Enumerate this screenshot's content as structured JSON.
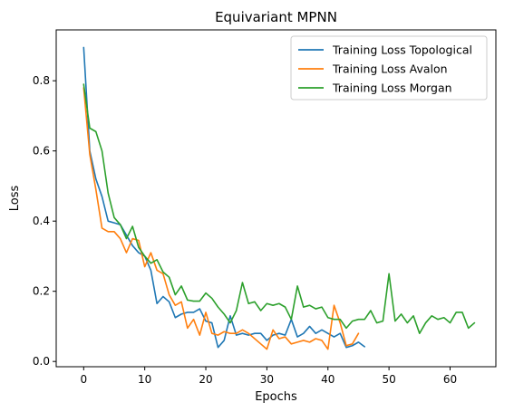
{
  "chart_data": {
    "type": "line",
    "title": "Equivariant MPNN",
    "xlabel": "Epochs",
    "ylabel": "Loss",
    "xlim": [
      -4.5,
      67.5
    ],
    "ylim": [
      -0.015,
      0.945
    ],
    "xticks": [
      0,
      10,
      20,
      30,
      40,
      50,
      60
    ],
    "yticks": [
      0.0,
      0.2,
      0.4,
      0.6,
      0.8
    ],
    "legend_position": "top-right",
    "grid": false,
    "series": [
      {
        "name": "Training Loss Topological",
        "color": "#1f77b4",
        "x": [
          0,
          1,
          2,
          3,
          4,
          5,
          6,
          7,
          8,
          9,
          10,
          11,
          12,
          13,
          14,
          15,
          16,
          17,
          18,
          19,
          20,
          21,
          22,
          23,
          24,
          25,
          26,
          27,
          28,
          29,
          30,
          31,
          32,
          33,
          34,
          35,
          36,
          37,
          38,
          39,
          40,
          41,
          42,
          43,
          44,
          45,
          46
        ],
        "values": [
          0.895,
          0.6,
          0.52,
          0.47,
          0.4,
          0.395,
          0.39,
          0.36,
          0.33,
          0.31,
          0.3,
          0.26,
          0.165,
          0.185,
          0.17,
          0.125,
          0.135,
          0.14,
          0.14,
          0.15,
          0.115,
          0.11,
          0.04,
          0.06,
          0.13,
          0.075,
          0.08,
          0.075,
          0.08,
          0.08,
          0.06,
          0.075,
          0.08,
          0.075,
          0.12,
          0.07,
          0.08,
          0.1,
          0.08,
          0.09,
          0.08,
          0.07,
          0.08,
          0.04,
          0.045,
          0.055,
          0.042
        ]
      },
      {
        "name": "Training Loss Avalon",
        "color": "#ff7f0e",
        "x": [
          0,
          1,
          2,
          3,
          4,
          5,
          6,
          7,
          8,
          9,
          10,
          11,
          12,
          13,
          14,
          15,
          16,
          17,
          18,
          19,
          20,
          21,
          22,
          23,
          24,
          25,
          26,
          27,
          28,
          29,
          30,
          31,
          32,
          33,
          34,
          35,
          36,
          37,
          38,
          39,
          40,
          41,
          42,
          43,
          44,
          45
        ],
        "values": [
          0.78,
          0.59,
          0.49,
          0.38,
          0.37,
          0.37,
          0.35,
          0.31,
          0.35,
          0.345,
          0.27,
          0.31,
          0.26,
          0.25,
          0.19,
          0.16,
          0.17,
          0.095,
          0.12,
          0.075,
          0.14,
          0.08,
          0.075,
          0.085,
          0.08,
          0.08,
          0.09,
          0.08,
          0.065,
          0.05,
          0.035,
          0.09,
          0.065,
          0.07,
          0.05,
          0.055,
          0.06,
          0.055,
          0.065,
          0.06,
          0.035,
          0.16,
          0.11,
          0.045,
          0.05,
          0.08
        ]
      },
      {
        "name": "Training Loss Morgan",
        "color": "#2ca02c",
        "x": [
          0,
          1,
          2,
          3,
          4,
          5,
          6,
          7,
          8,
          9,
          10,
          11,
          12,
          13,
          14,
          15,
          16,
          17,
          18,
          19,
          20,
          21,
          22,
          23,
          24,
          25,
          26,
          27,
          28,
          29,
          30,
          31,
          32,
          33,
          34,
          35,
          36,
          37,
          38,
          39,
          40,
          41,
          42,
          43,
          44,
          45,
          46,
          47,
          48,
          49,
          50,
          51,
          52,
          53,
          54,
          55,
          56,
          57,
          58,
          59,
          60,
          61,
          62,
          63,
          64
        ],
        "values": [
          0.79,
          0.665,
          0.655,
          0.6,
          0.48,
          0.41,
          0.39,
          0.35,
          0.385,
          0.325,
          0.3,
          0.28,
          0.29,
          0.255,
          0.24,
          0.19,
          0.215,
          0.175,
          0.172,
          0.172,
          0.195,
          0.18,
          0.155,
          0.135,
          0.11,
          0.145,
          0.225,
          0.165,
          0.17,
          0.145,
          0.165,
          0.16,
          0.165,
          0.155,
          0.12,
          0.215,
          0.155,
          0.16,
          0.15,
          0.155,
          0.125,
          0.12,
          0.12,
          0.095,
          0.115,
          0.12,
          0.12,
          0.145,
          0.11,
          0.115,
          0.25,
          0.115,
          0.135,
          0.11,
          0.13,
          0.08,
          0.11,
          0.13,
          0.12,
          0.125,
          0.11,
          0.14,
          0.14,
          0.095,
          0.11
        ]
      }
    ]
  }
}
